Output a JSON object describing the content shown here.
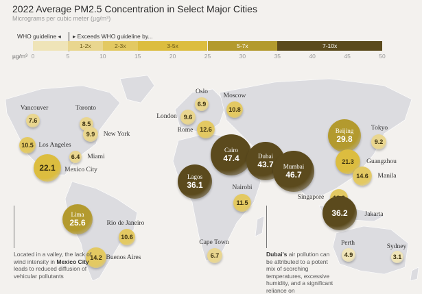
{
  "title": "2022 Average PM2.5 Concentration in Select Major Cities",
  "subtitle": "Micrograms per cubic meter (µg/m³)",
  "legend": {
    "who_label": "WHO guideline ◂",
    "exceeds_label": "▸ Exceeds WHO guideline by...",
    "unit": "µg/m³",
    "ticks": [
      "0",
      "5",
      "10",
      "15",
      "20",
      "25",
      "30",
      "35",
      "40",
      "45",
      "50"
    ],
    "bands": [
      {
        "label": "",
        "from": 0,
        "to": 5,
        "color": "#efe4b8"
      },
      {
        "label": "1-2x",
        "from": 5,
        "to": 10,
        "color": "#e9d68f"
      },
      {
        "label": "2-3x",
        "from": 10,
        "to": 15,
        "color": "#e3c962"
      },
      {
        "label": "3-5x",
        "from": 15,
        "to": 25,
        "color": "#dcbd3f"
      },
      {
        "label": "5-7x",
        "from": 25,
        "to": 35,
        "color": "#b39a2e"
      },
      {
        "label": "7-10x",
        "from": 35,
        "to": 50,
        "color": "#5b4a1d"
      }
    ]
  },
  "cities": [
    {
      "name": "Vancouver",
      "value": "7.6"
    },
    {
      "name": "Toronto",
      "value": "8.5"
    },
    {
      "name": "New York",
      "value": "9.9"
    },
    {
      "name": "Los Angeles",
      "value": "10.5"
    },
    {
      "name": "Miami",
      "value": "6.4"
    },
    {
      "name": "Mexico City",
      "value": "22.1"
    },
    {
      "name": "Lima",
      "value": "25.6"
    },
    {
      "name": "Rio de Janeiro",
      "value": "10.6"
    },
    {
      "name": "Buenos Aires",
      "value": "14.2"
    },
    {
      "name": "London",
      "value": "9.6"
    },
    {
      "name": "Oslo",
      "value": "6.9"
    },
    {
      "name": "Moscow",
      "value": "10.8"
    },
    {
      "name": "Rome",
      "value": "12.6"
    },
    {
      "name": "Cairo",
      "value": "47.4"
    },
    {
      "name": "Dubai",
      "value": "43.7"
    },
    {
      "name": "Mumbai",
      "value": "46.7"
    },
    {
      "name": "Lagos",
      "value": "36.1"
    },
    {
      "name": "Nairobi",
      "value": "11.5"
    },
    {
      "name": "Cape Town",
      "value": "6.7"
    },
    {
      "name": "Beijing",
      "value": "29.8"
    },
    {
      "name": "Tokyo",
      "value": "9.2"
    },
    {
      "name": "Guangzhou",
      "value": "21.3"
    },
    {
      "name": "Manila",
      "value": "14.6"
    },
    {
      "name": "Singapore",
      "value": "13.3"
    },
    {
      "name": "Jakarta",
      "value": "36.2"
    },
    {
      "name": "Perth",
      "value": "4.9"
    },
    {
      "name": "Sydney",
      "value": "3.1"
    }
  ],
  "notes": {
    "mexico": {
      "pre": "Located in a valley, the lack of wind intensity in ",
      "bold": "Mexico City",
      "post": " leads to reduced diffusion of vehicular pollutants"
    },
    "dubai": {
      "bold": "Dubai's",
      "post": " air pollution can be attributed to a potent mix of scorching temperatures, excessive humidity, and a significant reliance on"
    }
  }
}
